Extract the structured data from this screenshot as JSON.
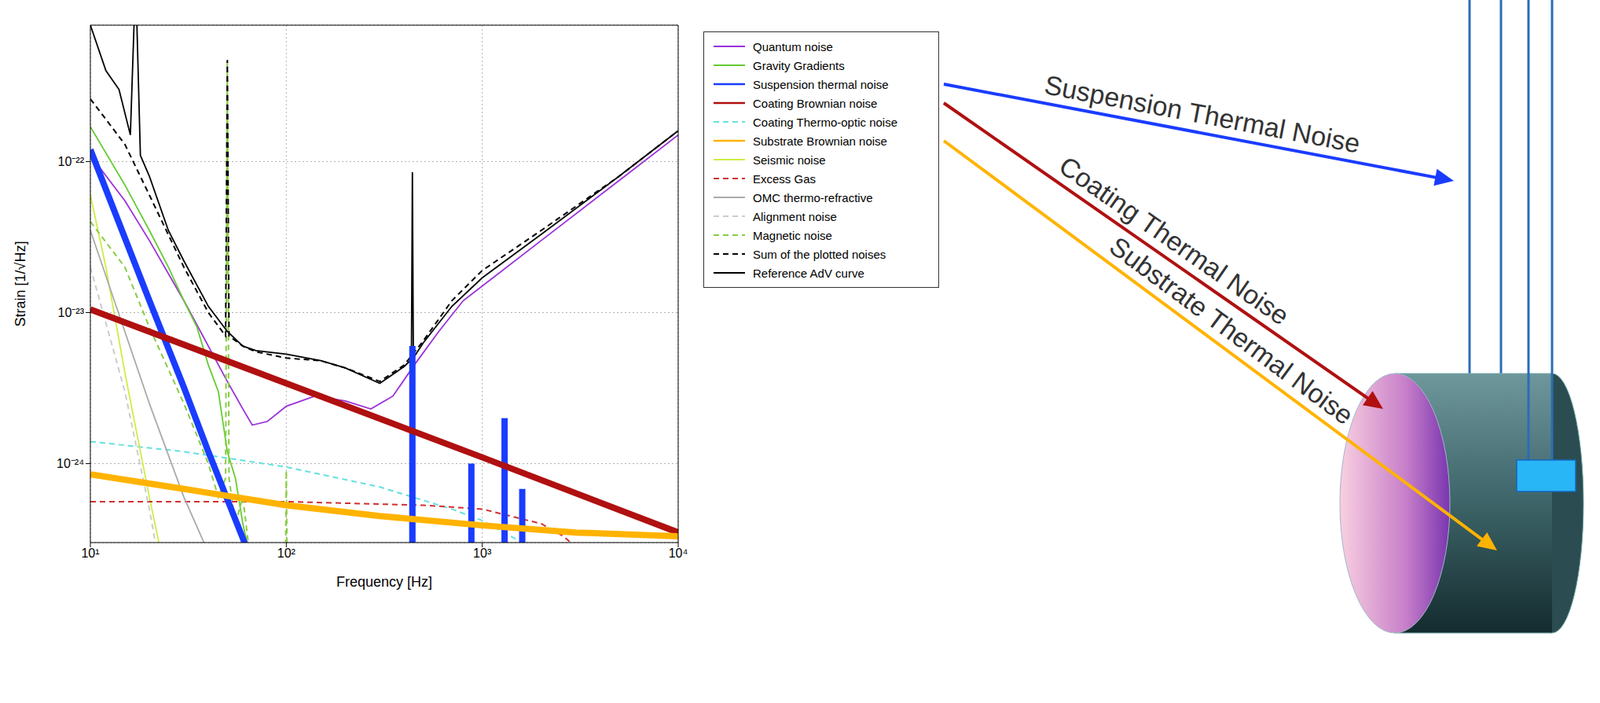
{
  "chart_data": {
    "type": "line",
    "log": true,
    "grid": true,
    "legend": "right",
    "x_label": "Frequency [Hz]",
    "y_label": "Strain [1/√Hz]",
    "xlim": [
      10,
      10000
    ],
    "xticks": [
      {
        "value": 10,
        "label": "10¹"
      },
      {
        "value": 100,
        "label": "10²"
      },
      {
        "value": 1000,
        "label": "10³"
      },
      {
        "value": 10000,
        "label": "10⁴"
      }
    ],
    "ylim": [
      3e-25,
      8e-22
    ],
    "yticks": [
      {
        "value": 1e-24,
        "label": "10⁻²⁴"
      },
      {
        "value": 1e-23,
        "label": "10⁻²³"
      },
      {
        "value": 1e-22,
        "label": "10⁻²²"
      }
    ],
    "annotations": [
      "Suspension Thermal Noise",
      "Coating Thermal Noise",
      "Substrate Thermal Noise"
    ],
    "series": [
      {
        "name": "Quantum noise",
        "color": "#9b30d9",
        "line_style": "solid",
        "x": [
          10,
          15,
          20,
          30,
          40,
          50,
          60,
          67,
          80,
          100,
          140,
          200,
          270,
          350,
          450,
          600,
          800,
          1000,
          2000,
          5000,
          10000
        ],
        "values": [
          1.1e-22,
          5.5e-23,
          3e-23,
          1.2e-23,
          6e-24,
          3.5e-24,
          2.3e-24,
          1.8e-24,
          1.9e-24,
          2.4e-24,
          2.8e-24,
          2.6e-24,
          2.3e-24,
          2.8e-24,
          4.5e-24,
          7.5e-24,
          1.2e-23,
          1.5e-23,
          3e-23,
          7.5e-23,
          1.5e-22
        ]
      },
      {
        "name": "Gravity Gradients",
        "color": "#66cc33",
        "line_style": "solid",
        "x": [
          10,
          15,
          20,
          25,
          30,
          35,
          40,
          45,
          50,
          55,
          60,
          65
        ],
        "values": [
          1.7e-22,
          7e-23,
          3.5e-23,
          2e-23,
          1.2e-23,
          8e-24,
          4.5e-24,
          3e-24,
          1.2e-24,
          8e-25,
          4e-25,
          2.5e-25
        ]
      },
      {
        "name": "Suspension thermal noise",
        "color": "#1a3cff",
        "line_style": "thick",
        "x": [
          10,
          20,
          30,
          40,
          60,
          100,
          439,
          440,
          441,
          879,
          880,
          881,
          1299,
          1300,
          1301,
          1599,
          1600,
          1601
        ],
        "values": [
          1.2e-22,
          1.2e-23,
          3.2e-24,
          1.2e-24,
          3.2e-25,
          6e-26,
          4.6e-28,
          6e-24,
          4.6e-28,
          4.6e-29,
          1e-24,
          4.6e-29,
          1.3e-29,
          2e-24,
          1.3e-29,
          6.4e-30,
          6.8e-25,
          6.4e-30
        ]
      },
      {
        "name": "Coating Brownian noise",
        "color": "#b01010",
        "line_style": "thick",
        "x": [
          10,
          100,
          1000,
          10000
        ],
        "values": [
          1.05e-23,
          3.4e-24,
          1.1e-24,
          3.5e-25
        ]
      },
      {
        "name": "Coating Thermo-optic noise",
        "color": "#66e0e0",
        "line_style": "dashed",
        "x": [
          10,
          30,
          100,
          300,
          700,
          1000,
          1600
        ],
        "values": [
          1.4e-24,
          1.2e-24,
          9.5e-25,
          7e-25,
          5e-25,
          4.2e-25,
          3e-25
        ]
      },
      {
        "name": "Substrate Brownian noise",
        "color": "#ffb300",
        "line_style": "thick",
        "x": [
          10,
          30,
          100,
          300,
          1000,
          3000,
          10000
        ],
        "values": [
          8.5e-25,
          6.8e-25,
          5.3e-25,
          4.5e-25,
          3.9e-25,
          3.5e-25,
          3.3e-25
        ]
      },
      {
        "name": "Seismic noise",
        "color": "#ccee44",
        "line_style": "solid",
        "x": [
          10,
          12,
          15,
          20,
          25
        ],
        "values": [
          6e-23,
          2e-23,
          4e-24,
          6e-25,
          1.5e-25
        ]
      },
      {
        "name": "Excess Gas",
        "color": "#d03030",
        "line_style": "dashed",
        "x": [
          10,
          100,
          500,
          1000,
          2000,
          2600,
          3000
        ],
        "values": [
          5.6e-25,
          5.6e-25,
          5.3e-25,
          5e-25,
          4e-25,
          3.3e-25,
          2.8e-25
        ]
      },
      {
        "name": "OMC thermo-refractive",
        "color": "#aaaaaa",
        "line_style": "solid",
        "x": [
          10,
          20,
          30,
          38
        ],
        "values": [
          3.5e-23,
          2.5e-24,
          6e-25,
          3e-25
        ]
      },
      {
        "name": "Alignment noise",
        "color": "#cccccc",
        "line_style": "dashed",
        "x": [
          10,
          15,
          20,
          22
        ],
        "values": [
          2e-23,
          3e-24,
          5e-25,
          2.5e-25
        ]
      },
      {
        "name": "Magnetic noise",
        "color": "#88cc44",
        "line_style": "dashed",
        "x": [
          10,
          15,
          20,
          30,
          40,
          45,
          49,
          50,
          51,
          55,
          60,
          65,
          80,
          99,
          100,
          101,
          120
        ],
        "values": [
          4e-23,
          2e-23,
          8e-24,
          2.5e-24,
          1e-24,
          6e-25,
          8e-25,
          4.7e-22,
          8e-25,
          4e-25,
          6e-25,
          2.5e-25,
          2e-25,
          2e-25,
          9e-25,
          2e-25,
          1.5e-25
        ]
      },
      {
        "name": "Sum of the plotted noises",
        "color": "#000000",
        "line_style": "dashed",
        "x": [
          10,
          15,
          20,
          30,
          40,
          49,
          50,
          51,
          60,
          70,
          100,
          150,
          200,
          300,
          400,
          500,
          700,
          1000,
          2000,
          5000,
          10000
        ],
        "values": [
          2.6e-22,
          1.3e-22,
          6e-23,
          2e-23,
          1e-23,
          7e-24,
          4.7e-22,
          7e-24,
          6e-24,
          5.5e-24,
          5e-24,
          4.8e-24,
          4.3e-24,
          3.5e-24,
          4.5e-24,
          6.5e-24,
          1.2e-23,
          1.9e-23,
          3.5e-23,
          8e-23,
          1.6e-22
        ]
      },
      {
        "name": "Reference AdV curve",
        "color": "#000000",
        "line_style": "solid",
        "x": [
          10,
          12,
          14,
          16,
          16.8,
          17.2,
          18,
          20,
          25,
          30,
          40,
          50,
          60,
          70,
          100,
          150,
          200,
          300,
          400,
          435,
          440,
          445,
          500,
          700,
          1000,
          2000,
          5000,
          10000
        ],
        "values": [
          8e-22,
          4e-22,
          3e-22,
          1.5e-22,
          1e-21,
          1e-21,
          1.1e-22,
          8e-23,
          3.5e-23,
          2.2e-23,
          1.1e-23,
          7.5e-24,
          6e-24,
          5.6e-24,
          5.3e-24,
          4.8e-24,
          4.3e-24,
          3.4e-24,
          4.4e-24,
          4.9e-24,
          8.5e-23,
          5e-24,
          6.3e-24,
          1.1e-23,
          1.7e-23,
          3.3e-23,
          8e-23,
          1.6e-22
        ]
      }
    ]
  }
}
